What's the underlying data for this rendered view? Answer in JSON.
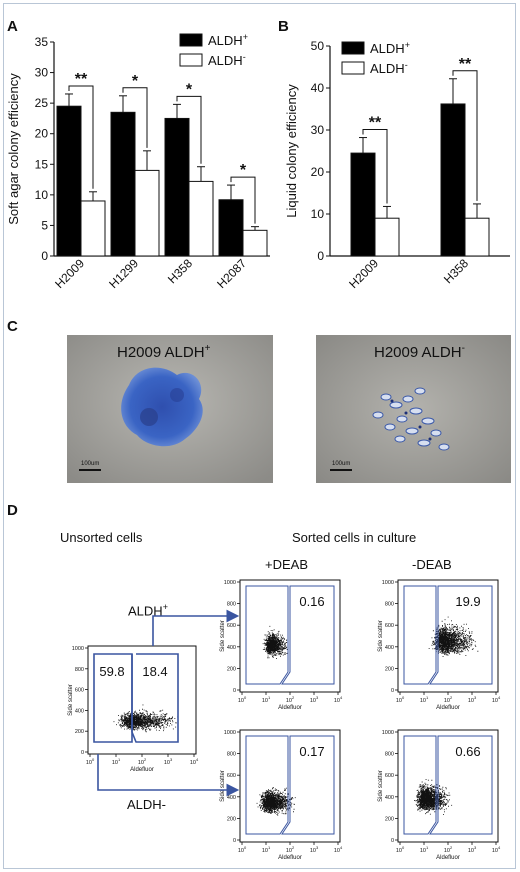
{
  "panels": {
    "a": "A",
    "b": "B",
    "c": "C",
    "d": "D"
  },
  "chart_data": [
    {
      "type": "bar",
      "ylabel": "Soft agar colony efficiency",
      "categories": [
        "H2009",
        "H1299",
        "H358",
        "H2087"
      ],
      "ylim": [
        0,
        35
      ],
      "yticks": [
        0,
        5,
        10,
        15,
        20,
        25,
        30,
        35
      ],
      "legend": {
        "placement": "top-right",
        "entries": [
          "ALDH+",
          "ALDH-"
        ]
      },
      "series": [
        {
          "name": "ALDH+",
          "color": "#000000",
          "values": [
            24.5,
            23.5,
            22.5,
            9.2
          ],
          "errors": [
            2.0,
            2.7,
            2.3,
            2.4
          ]
        },
        {
          "name": "ALDH-",
          "color": "#ffffff",
          "values": [
            9.0,
            14.0,
            12.2,
            4.2
          ],
          "errors": [
            1.5,
            3.2,
            2.4,
            0.6
          ]
        }
      ],
      "significance": [
        "**",
        "*",
        "*",
        "*"
      ],
      "grid": false
    },
    {
      "type": "bar",
      "ylabel": "Liquid colony efficiency",
      "categories": [
        "H2009",
        "H358"
      ],
      "ylim": [
        0,
        50
      ],
      "yticks": [
        0,
        10,
        20,
        30,
        40,
        50
      ],
      "legend": {
        "placement": "top-left",
        "entries": [
          "ALDH+",
          "ALDH-"
        ]
      },
      "series": [
        {
          "name": "ALDH+",
          "color": "#000000",
          "values": [
            24.5,
            36.2
          ],
          "errors": [
            3.7,
            6.0
          ]
        },
        {
          "name": "ALDH-",
          "color": "#ffffff",
          "values": [
            9.0,
            9.0
          ],
          "errors": [
            2.8,
            3.4
          ]
        }
      ],
      "significance": [
        "**",
        "**"
      ],
      "grid": false
    }
  ],
  "panel_c": {
    "left_title_main": "H2009 ALDH",
    "left_title_sup": "+",
    "right_title_main": "H2009 ALDH",
    "right_title_sup": "-",
    "scale_label": "100um"
  },
  "panel_d": {
    "unsorted_label": "Unsorted cells",
    "sorted_label": "Sorted cells in culture",
    "plus_deab": "+DEAB",
    "minus_deab": "-DEAB",
    "aldh_plus_main": "ALDH",
    "aldh_plus_sup": "+",
    "aldh_minus": "ALDH-",
    "x_axis_label": "Aldefluor",
    "y_axis_label": "Side scatter",
    "y_ticks": [
      "0",
      "200",
      "400",
      "600",
      "800",
      "1000"
    ],
    "x_ticks": [
      "10",
      "10",
      "10",
      "10",
      "10"
    ],
    "x_tick_exps": [
      "0",
      "1",
      "2",
      "3",
      "4"
    ],
    "unsorted_values": [
      "59.8",
      "18.4"
    ],
    "sorted_values": {
      "top_left": "0.16",
      "top_right": "19.9",
      "bottom_left": "0.17",
      "bottom_right": "0.66"
    }
  }
}
